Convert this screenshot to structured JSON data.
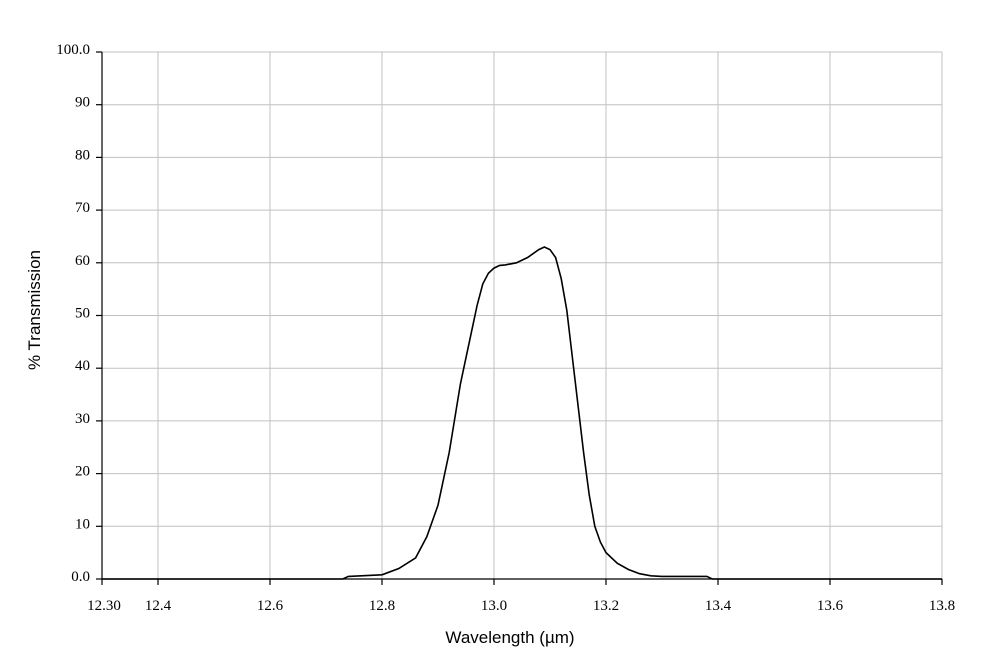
{
  "chart_data": {
    "type": "line",
    "title": "",
    "xlabel": "Wavelength (µm)",
    "ylabel": "% Transmission",
    "xlim": [
      12.3,
      13.8
    ],
    "ylim": [
      0,
      100
    ],
    "grid": true,
    "x_ticks": [
      12.4,
      12.6,
      12.8,
      13.0,
      13.2,
      13.4,
      13.6,
      13.8
    ],
    "x_tick_labels": [
      "12.4",
      "12.6",
      "12.8",
      "13.0",
      "13.2",
      "13.4",
      "13.6",
      "13.8"
    ],
    "x_min_label": "12.30",
    "y_ticks": [
      0,
      10,
      20,
      30,
      40,
      50,
      60,
      70,
      80,
      90,
      100
    ],
    "y_tick_labels": [
      "0.0",
      "10",
      "20",
      "30",
      "40",
      "50",
      "60",
      "70",
      "80",
      "90",
      "100.0"
    ],
    "series": [
      {
        "x": [
          12.3,
          12.73,
          12.74,
          12.8,
          12.83,
          12.86,
          12.88,
          12.9,
          12.92,
          12.94,
          12.96,
          12.97,
          12.98,
          12.99,
          13.0,
          13.01,
          13.02,
          13.04,
          13.06,
          13.08,
          13.09,
          13.1,
          13.11,
          13.12,
          13.13,
          13.14,
          13.15,
          13.16,
          13.17,
          13.18,
          13.19,
          13.2,
          13.22,
          13.24,
          13.26,
          13.28,
          13.3,
          13.34,
          13.38,
          13.39,
          13.8
        ],
        "y": [
          0,
          0,
          0.5,
          0.8,
          2,
          4,
          8,
          14,
          24,
          37,
          47,
          52,
          56,
          58,
          59,
          59.5,
          59.6,
          60,
          61,
          62.5,
          63,
          62.5,
          61,
          57,
          51,
          42,
          33,
          24,
          16,
          10,
          7,
          5,
          3,
          1.8,
          1,
          0.6,
          0.5,
          0.5,
          0.5,
          0,
          0
        ]
      }
    ]
  }
}
